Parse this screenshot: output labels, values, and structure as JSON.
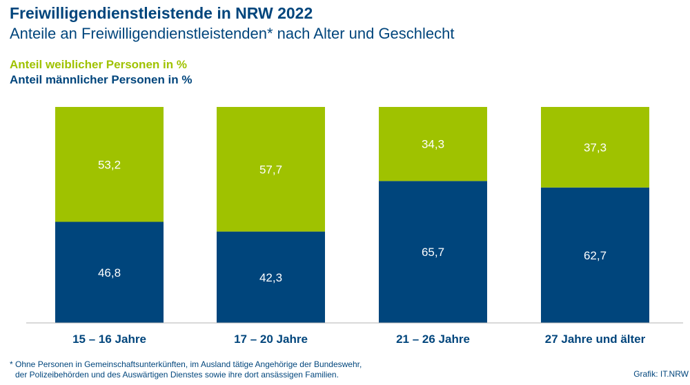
{
  "header": {
    "title": "Freiwilligendienstleistende in NRW 2022",
    "subtitle": "Anteile an Freiwilligendienstleistenden* nach Alter und Geschlecht"
  },
  "legend": {
    "female": "Anteil weiblicher Personen in %",
    "male": "Anteil männlicher Personen in %"
  },
  "colors": {
    "female": "#9fc200",
    "male": "#00457c",
    "axis": "#b3b3b3",
    "text": "#00457c"
  },
  "chart_data": {
    "type": "bar",
    "stacked": true,
    "categories": [
      "15 – 16 Jahre",
      "17 – 20 Jahre",
      "21 – 26 Jahre",
      "27 Jahre und älter"
    ],
    "series": [
      {
        "name": "Anteil männlicher Personen in %",
        "values": [
          46.8,
          42.3,
          65.7,
          62.7
        ],
        "labels": [
          "46,8",
          "42,3",
          "65,7",
          "62,7"
        ]
      },
      {
        "name": "Anteil weiblicher Personen in %",
        "values": [
          53.2,
          57.7,
          34.3,
          37.3
        ],
        "labels": [
          "53,2",
          "57,7",
          "34,3",
          "37,3"
        ]
      }
    ],
    "ylim": [
      0,
      100
    ],
    "grid": false,
    "legend_position": "top-left"
  },
  "footnote": {
    "line1": "* Ohne Personen in Gemeinschaftsunterkünften, im Ausland tätige Angehörige der Bundeswehr,",
    "line2": "der Polizeibehörden und des Auswärtigen Dienstes sowie ihre dort ansässigen Familien."
  },
  "source": "Grafik: IT.NRW"
}
